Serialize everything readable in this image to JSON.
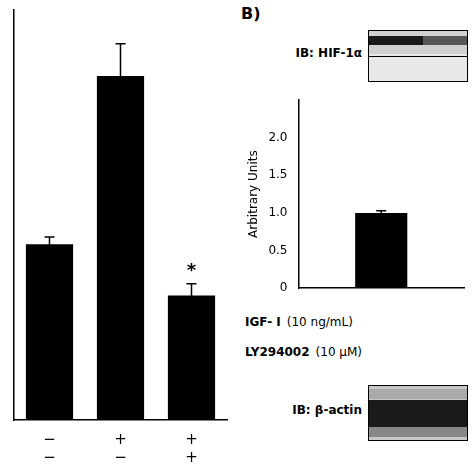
{
  "chart_data": [
    {
      "type": "bar",
      "categories": [
        [
          "−",
          "−"
        ],
        [
          "+",
          "−"
        ],
        [
          "+",
          "+"
        ]
      ],
      "values": [
        1.2,
        2.35,
        0.85
      ],
      "errors": [
        0.05,
        0.22,
        0.08
      ],
      "color": "#000000",
      "ylim": [
        0,
        2.8
      ],
      "grid": false,
      "tick_labels": "x",
      "annotations": [
        {
          "text": "*",
          "index": 2
        }
      ]
    },
    {
      "type": "bar",
      "title": "B)",
      "categories": [
        null
      ],
      "values": [
        1.0
      ],
      "errors": [
        0.03
      ],
      "color": "#000000",
      "ylabel": "Arbitrary Units",
      "ylim": [
        0,
        2.5
      ],
      "yticks": [
        0,
        0.5,
        {
          "value": 1.0,
          "label": "1.0"
        },
        1.5,
        {
          "value": 2.0,
          "label": "2.0"
        }
      ],
      "grid": false,
      "tick_labels": "y",
      "annotations": [
        "IB: HIF-1α",
        "IGF- I",
        "(10 ng/mL)",
        "LY294002",
        "(10 μM)",
        "IB: β-actin"
      ]
    }
  ]
}
